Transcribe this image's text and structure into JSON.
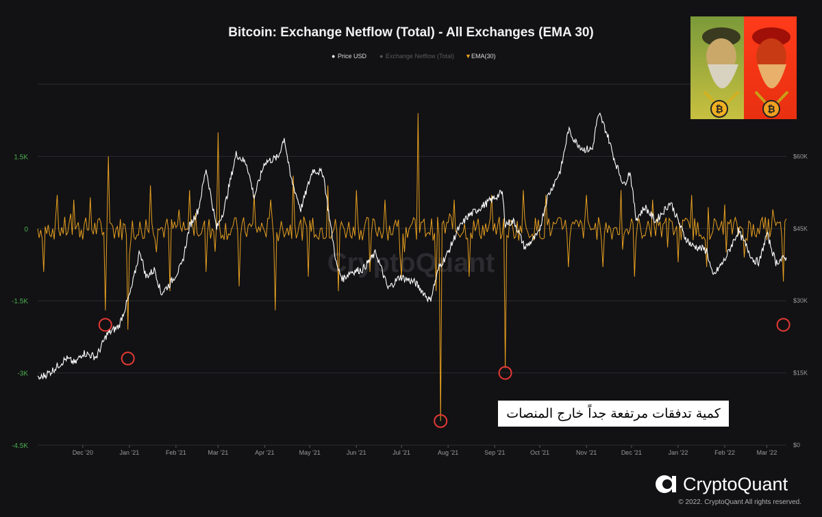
{
  "chart_data": {
    "type": "line",
    "title": "Bitcoin: Exchange Netflow (Total) - All Exchanges (EMA 30)",
    "legend": {
      "placement": "top-center",
      "entries": [
        {
          "name": "Price USD",
          "color": "#ffffff",
          "marker": "●"
        },
        {
          "name": "Exchange Netflow (Total)",
          "color": "#5a5a5a",
          "marker": "●"
        },
        {
          "name": "EMA(30)",
          "color": "#e8a020",
          "marker": "▼"
        }
      ]
    },
    "x_axis": {
      "type": "date",
      "range": [
        "2020-11-01",
        "2022-03-14"
      ],
      "tick_labels": [
        "Dec '20",
        "Jan '21",
        "Feb '21",
        "Mar '21",
        "Apr '21",
        "May '21",
        "Jun '21",
        "Jul '21",
        "Aug '21",
        "Sep '21",
        "Oct '21",
        "Nov '21",
        "Dec '21",
        "Jan '22",
        "Feb '22",
        "Mar '22"
      ],
      "tick_dates": [
        "2020-12-01",
        "2021-01-01",
        "2021-02-01",
        "2021-03-01",
        "2021-04-01",
        "2021-05-01",
        "2021-06-01",
        "2021-07-01",
        "2021-08-01",
        "2021-09-01",
        "2021-10-01",
        "2021-11-01",
        "2021-12-01",
        "2022-01-01",
        "2022-02-01",
        "2022-03-01"
      ]
    },
    "y_left": {
      "label": "",
      "range": [
        -4500,
        3000
      ],
      "ticks": [
        1500,
        0,
        -1500,
        -3000,
        -4500
      ],
      "tick_labels": [
        "1.5K",
        "0",
        "-1.5K",
        "-3K",
        "-4.5K"
      ]
    },
    "y_right": {
      "label": "",
      "range": [
        0,
        75000
      ],
      "ticks": [
        60000,
        45000,
        30000,
        15000,
        0
      ],
      "tick_labels": [
        "$60K",
        "$45K",
        "$30K",
        "$15K",
        "$0"
      ]
    },
    "grid": true,
    "series": [
      {
        "name": "Price USD",
        "axis": "right",
        "color": "#ffffff",
        "points": [
          [
            "2020-11-01",
            13700
          ],
          [
            "2020-11-10",
            15300
          ],
          [
            "2020-11-20",
            18000
          ],
          [
            "2020-11-26",
            17000
          ],
          [
            "2020-12-01",
            19200
          ],
          [
            "2020-12-10",
            18300
          ],
          [
            "2020-12-17",
            23000
          ],
          [
            "2020-12-25",
            24700
          ],
          [
            "2021-01-02",
            32000
          ],
          [
            "2021-01-08",
            40500
          ],
          [
            "2021-01-12",
            35000
          ],
          [
            "2021-01-18",
            36500
          ],
          [
            "2021-01-22",
            31500
          ],
          [
            "2021-01-28",
            33500
          ],
          [
            "2021-02-05",
            37500
          ],
          [
            "2021-02-10",
            45500
          ],
          [
            "2021-02-16",
            49000
          ],
          [
            "2021-02-21",
            57500
          ],
          [
            "2021-02-28",
            45000
          ],
          [
            "2021-03-05",
            49000
          ],
          [
            "2021-03-13",
            60500
          ],
          [
            "2021-03-20",
            58500
          ],
          [
            "2021-03-25",
            51500
          ],
          [
            "2021-04-01",
            58800
          ],
          [
            "2021-04-10",
            59800
          ],
          [
            "2021-04-14",
            64000
          ],
          [
            "2021-04-18",
            56000
          ],
          [
            "2021-04-25",
            49000
          ],
          [
            "2021-05-03",
            57200
          ],
          [
            "2021-05-10",
            56500
          ],
          [
            "2021-05-13",
            49500
          ],
          [
            "2021-05-19",
            37000
          ],
          [
            "2021-05-23",
            34500
          ],
          [
            "2021-05-28",
            36000
          ],
          [
            "2021-06-05",
            36500
          ],
          [
            "2021-06-14",
            40000
          ],
          [
            "2021-06-22",
            32500
          ],
          [
            "2021-06-30",
            35000
          ],
          [
            "2021-07-10",
            33800
          ],
          [
            "2021-07-20",
            30000
          ],
          [
            "2021-07-26",
            37000
          ],
          [
            "2021-08-01",
            40000
          ],
          [
            "2021-08-07",
            44500
          ],
          [
            "2021-08-14",
            47500
          ],
          [
            "2021-08-23",
            49500
          ],
          [
            "2021-09-06",
            52500
          ],
          [
            "2021-09-08",
            46000
          ],
          [
            "2021-09-14",
            46500
          ],
          [
            "2021-09-21",
            41000
          ],
          [
            "2021-09-30",
            43800
          ],
          [
            "2021-10-06",
            51500
          ],
          [
            "2021-10-15",
            57300
          ],
          [
            "2021-10-20",
            65500
          ],
          [
            "2021-10-25",
            63000
          ],
          [
            "2021-10-30",
            61500
          ],
          [
            "2021-11-05",
            61500
          ],
          [
            "2021-11-08",
            67500
          ],
          [
            "2021-11-10",
            68500
          ],
          [
            "2021-11-15",
            64500
          ],
          [
            "2021-11-20",
            59000
          ],
          [
            "2021-11-26",
            54000
          ],
          [
            "2021-11-30",
            57000
          ],
          [
            "2021-12-04",
            47000
          ],
          [
            "2021-12-10",
            49500
          ],
          [
            "2021-12-17",
            46500
          ],
          [
            "2021-12-27",
            50500
          ],
          [
            "2022-01-05",
            43500
          ],
          [
            "2022-01-10",
            41500
          ],
          [
            "2022-01-20",
            40500
          ],
          [
            "2022-01-24",
            35000
          ],
          [
            "2022-02-01",
            38500
          ],
          [
            "2022-02-10",
            44500
          ],
          [
            "2022-02-20",
            38500
          ],
          [
            "2022-02-24",
            38000
          ],
          [
            "2022-03-01",
            44000
          ],
          [
            "2022-03-07",
            38000
          ],
          [
            "2022-03-14",
            39000
          ]
        ]
      },
      {
        "name": "EMA(30)",
        "axis": "left",
        "color": "#e8a020",
        "baseline": 0,
        "spikes": [
          [
            "2020-11-05",
            -900
          ],
          [
            "2020-11-14",
            700
          ],
          [
            "2020-11-25",
            600
          ],
          [
            "2020-12-06",
            650
          ],
          [
            "2020-12-18",
            1500
          ],
          [
            "2020-12-16",
            -1700
          ],
          [
            "2020-12-31",
            -2100
          ],
          [
            "2021-01-15",
            900
          ],
          [
            "2021-01-28",
            -1300
          ],
          [
            "2021-02-10",
            800
          ],
          [
            "2021-02-21",
            -900
          ],
          [
            "2021-03-01",
            2000
          ],
          [
            "2021-03-15",
            -1200
          ],
          [
            "2021-03-25",
            700
          ],
          [
            "2021-04-05",
            600
          ],
          [
            "2021-04-08",
            -1700
          ],
          [
            "2021-04-20",
            1100
          ],
          [
            "2021-04-30",
            -1000
          ],
          [
            "2021-05-13",
            900
          ],
          [
            "2021-05-20",
            -1300
          ],
          [
            "2021-06-01",
            800
          ],
          [
            "2021-06-10",
            -900
          ],
          [
            "2021-06-20",
            600
          ],
          [
            "2021-07-01",
            -1000
          ],
          [
            "2021-07-12",
            2400
          ],
          [
            "2021-07-24",
            -1300
          ],
          [
            "2021-07-27",
            -4000
          ],
          [
            "2021-08-05",
            600
          ],
          [
            "2021-08-15",
            -1000
          ],
          [
            "2021-08-30",
            700
          ],
          [
            "2021-09-08",
            -2900
          ],
          [
            "2021-09-20",
            800
          ],
          [
            "2021-10-05",
            700
          ],
          [
            "2021-10-20",
            -800
          ],
          [
            "2021-11-01",
            700
          ],
          [
            "2021-11-12",
            -800
          ],
          [
            "2021-11-24",
            800
          ],
          [
            "2021-12-03",
            -1000
          ],
          [
            "2021-12-15",
            600
          ],
          [
            "2022-01-01",
            -700
          ],
          [
            "2022-01-10",
            700
          ],
          [
            "2022-01-20",
            -800
          ],
          [
            "2022-02-01",
            500
          ],
          [
            "2022-02-14",
            -600
          ],
          [
            "2022-03-05",
            400
          ],
          [
            "2022-03-12",
            -1100
          ]
        ]
      }
    ],
    "watermark": "CryptoQuant",
    "annotation_markers": [
      {
        "date": "2020-12-16",
        "value": -2000
      },
      {
        "date": "2020-12-31",
        "value": -2700
      },
      {
        "date": "2021-07-27",
        "value": -4000
      },
      {
        "date": "2021-09-08",
        "value": -3000
      },
      {
        "date": "2022-03-12",
        "value": -2000
      }
    ],
    "annotation_text": "كمية تدفقات مرتفعة جداً خارج المنصات"
  },
  "brand": {
    "name": "CryptoQuant",
    "copyright": "© 2022. CryptoQuant All rights reserved."
  }
}
